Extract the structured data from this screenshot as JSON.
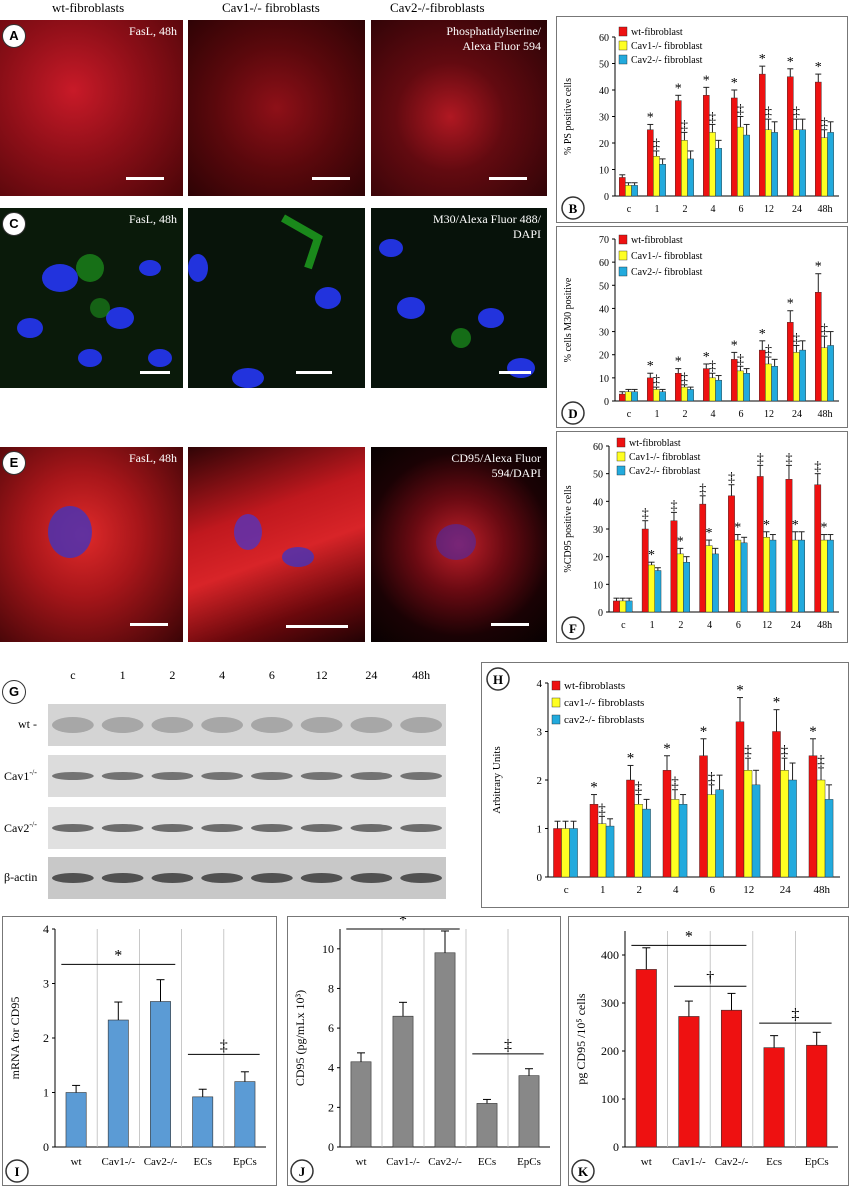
{
  "column_titles": [
    "wt-fibroblasts",
    "Cav1-/- fibroblasts",
    "Cav2-/-fibroblasts"
  ],
  "micro_panels": {
    "A": {
      "badge": "A",
      "left_label": "FasL, 48h",
      "right_label": "Phosphatidylserine/\nAlexa Fluor 594"
    },
    "C": {
      "badge": "C",
      "left_label": "FasL, 48h",
      "right_label": "M30/Alexa Fluor 488/\nDAPI"
    },
    "E": {
      "badge": "E",
      "left_label": "FasL, 48h",
      "right_label": "CD95/Alexa Fluor\n594/DAPI"
    }
  },
  "colors": {
    "red": "#ee1111",
    "yellow": "#ffff22",
    "blue": "#22aadd",
    "gray": "#888888",
    "lightblue": "#5b9bd5"
  },
  "time_categories": [
    "c",
    "1",
    "2",
    "4",
    "6",
    "12",
    "24",
    "48h"
  ],
  "chart_data": [
    {
      "panel": "B",
      "type": "bar",
      "ylabel": "% PS positive cells",
      "ylim": [
        0,
        60
      ],
      "yticks": [
        0,
        10,
        20,
        30,
        40,
        50,
        60
      ],
      "categories": [
        "c",
        "1",
        "2",
        "4",
        "6",
        "12",
        "24",
        "48h"
      ],
      "legend": "top-left",
      "series": [
        {
          "name": "wt-fibroblast",
          "color": "#ee1111",
          "values": [
            7,
            25,
            36,
            38,
            37,
            46,
            45,
            43
          ],
          "err": [
            1,
            2,
            2,
            3,
            3,
            3,
            3,
            3
          ],
          "marks": [
            "",
            "*",
            "*",
            "*",
            "*",
            "*",
            "*",
            "*"
          ]
        },
        {
          "name": "Cav1-/- fibroblast",
          "color": "#ffff22",
          "values": [
            4,
            15,
            21,
            24,
            26,
            25,
            25,
            22
          ],
          "err": [
            1,
            2,
            3,
            3,
            4,
            4,
            4,
            3
          ],
          "marks": [
            "",
            "‡",
            "‡",
            "‡",
            "‡",
            "‡",
            "‡",
            "‡"
          ]
        },
        {
          "name": "Cav2-/- fibroblast",
          "color": "#22aadd",
          "values": [
            4,
            12,
            14,
            18,
            23,
            24,
            25,
            24
          ],
          "err": [
            1,
            2,
            3,
            3,
            4,
            4,
            4,
            4
          ],
          "marks": [
            "",
            "",
            "",
            "",
            "",
            "",
            "",
            ""
          ]
        }
      ]
    },
    {
      "panel": "D",
      "type": "bar",
      "ylabel": "% cells M30 positive",
      "ylim": [
        0,
        70
      ],
      "yticks": [
        0,
        10,
        20,
        30,
        40,
        50,
        60,
        70
      ],
      "categories": [
        "c",
        "1",
        "2",
        "4",
        "6",
        "12",
        "24",
        "48h"
      ],
      "legend": "top-left",
      "series": [
        {
          "name": "wt-fibroblast",
          "color": "#ee1111",
          "values": [
            3,
            10,
            12,
            14,
            18,
            22,
            34,
            47
          ],
          "err": [
            1,
            2,
            2,
            2,
            3,
            4,
            5,
            8
          ],
          "marks": [
            "",
            "*",
            "*",
            "*",
            "*",
            "*",
            "*",
            "*"
          ]
        },
        {
          "name": "Cav1-/- fibroblast",
          "color": "#ffff22",
          "values": [
            4,
            5,
            6,
            10,
            13,
            16,
            21,
            23
          ],
          "err": [
            1,
            1,
            1,
            2,
            2,
            3,
            3,
            5
          ],
          "marks": [
            "",
            "‡",
            "‡",
            "‡",
            "‡",
            "‡",
            "‡",
            "‡"
          ]
        },
        {
          "name": "Cav2-/- fibroblast",
          "color": "#22aadd",
          "values": [
            4,
            4,
            5,
            9,
            12,
            15,
            22,
            24
          ],
          "err": [
            1,
            1,
            1,
            2,
            2,
            3,
            4,
            6
          ],
          "marks": [
            "",
            "",
            "",
            "",
            "",
            "",
            "",
            ""
          ]
        }
      ]
    },
    {
      "panel": "F",
      "type": "bar",
      "ylabel": "%CD95 positive cells",
      "ylim": [
        0,
        60
      ],
      "yticks": [
        0,
        10,
        20,
        30,
        40,
        50,
        60
      ],
      "categories": [
        "c",
        "1",
        "2",
        "4",
        "6",
        "12",
        "24",
        "48h"
      ],
      "legend": "top-left",
      "series": [
        {
          "name": "wt-fibroblast",
          "color": "#ee1111",
          "values": [
            4,
            30,
            33,
            39,
            42,
            49,
            48,
            46
          ],
          "err": [
            1,
            3,
            3,
            3,
            4,
            4,
            5,
            4
          ],
          "marks": [
            "",
            "‡",
            "‡",
            "‡",
            "‡",
            "‡",
            "‡",
            "‡"
          ]
        },
        {
          "name": "Cav1-/- fibroblast",
          "color": "#ffff22",
          "values": [
            4,
            17,
            21,
            24,
            26,
            27,
            26,
            26
          ],
          "err": [
            1,
            1,
            2,
            2,
            2,
            2,
            3,
            2
          ],
          "marks": [
            "",
            "*",
            "*",
            "*",
            "*",
            "*",
            "*",
            "*"
          ]
        },
        {
          "name": "Cav2-/- fibroblast",
          "color": "#22aadd",
          "values": [
            4,
            15,
            18,
            21,
            25,
            26,
            26,
            26
          ],
          "err": [
            1,
            1,
            2,
            2,
            2,
            2,
            3,
            2
          ],
          "marks": [
            "",
            "",
            "",
            "",
            "",
            "",
            "",
            ""
          ]
        }
      ]
    },
    {
      "panel": "H",
      "type": "bar",
      "ylabel": "Arbitrary Units",
      "ylim": [
        0,
        4
      ],
      "yticks": [
        0,
        1,
        2,
        3,
        4
      ],
      "categories": [
        "c",
        "1",
        "2",
        "4",
        "6",
        "12",
        "24",
        "48h"
      ],
      "legend": "top-left",
      "series": [
        {
          "name": "wt-fibroblasts",
          "color": "#ee1111",
          "values": [
            1.0,
            1.5,
            2.0,
            2.2,
            2.5,
            3.2,
            3.0,
            2.5
          ],
          "err": [
            0.15,
            0.2,
            0.3,
            0.3,
            0.35,
            0.5,
            0.45,
            0.35
          ],
          "marks": [
            "",
            "*",
            "*",
            "*",
            "*",
            "*",
            "*",
            "*"
          ]
        },
        {
          "name": "cav1-/- fibroblasts",
          "color": "#ffff22",
          "values": [
            1.0,
            1.1,
            1.5,
            1.6,
            1.7,
            2.2,
            2.2,
            2.0
          ],
          "err": [
            0.15,
            0.15,
            0.2,
            0.2,
            0.2,
            0.25,
            0.25,
            0.25
          ],
          "marks": [
            "",
            "‡",
            "‡",
            "‡",
            "‡",
            "‡",
            "‡",
            "‡"
          ]
        },
        {
          "name": "cav2-/- fibroblasts",
          "color": "#22aadd",
          "values": [
            1.0,
            1.05,
            1.4,
            1.5,
            1.8,
            1.9,
            2.0,
            1.6
          ],
          "err": [
            0.15,
            0.15,
            0.2,
            0.2,
            0.3,
            0.3,
            0.35,
            0.3
          ],
          "marks": [
            "",
            "",
            "",
            "",
            "",
            "",
            "",
            ""
          ]
        }
      ]
    },
    {
      "panel": "I",
      "type": "bar",
      "ylabel": "mRNA for CD95",
      "ylim": [
        0,
        4
      ],
      "yticks": [
        0,
        1,
        2,
        3,
        4
      ],
      "categories": [
        "wt",
        "Cav1-/-",
        "Cav2-/-",
        "ECs",
        "EpCs"
      ],
      "color": "#5b9bd5",
      "values": [
        1.0,
        2.33,
        2.67,
        0.92,
        1.2
      ],
      "err": [
        0.13,
        0.33,
        0.4,
        0.14,
        0.18
      ],
      "sig": [
        {
          "label": "*",
          "from": 0,
          "to": 2,
          "at": 3.35
        },
        {
          "label": "‡",
          "from": 3,
          "to": 4,
          "at": 1.7
        }
      ]
    },
    {
      "panel": "J",
      "type": "bar",
      "ylabel": "CD95 (pg/mLx 10³)",
      "ylim": [
        0,
        11
      ],
      "yticks": [
        0,
        2,
        4,
        6,
        8,
        10
      ],
      "categories": [
        "wt",
        "Cav1-/-",
        "Cav2-/-",
        "ECs",
        "EpCs"
      ],
      "color": "#888888",
      "values": [
        4.3,
        6.6,
        9.8,
        2.2,
        3.6
      ],
      "err": [
        0.45,
        0.7,
        1.1,
        0.2,
        0.35
      ],
      "sig": [
        {
          "label": "*",
          "from": 0,
          "to": 2,
          "at": 11.0
        },
        {
          "label": "‡",
          "from": 3,
          "to": 4,
          "at": 4.7
        }
      ]
    },
    {
      "panel": "K",
      "type": "bar",
      "ylabel": "pg CD95 /10⁵ cells",
      "ylim": [
        0,
        450
      ],
      "yticks": [
        0,
        100,
        200,
        300,
        400
      ],
      "categories": [
        "wt",
        "Cav1-/-",
        "Cav2-/-",
        "Ecs",
        "EpCs"
      ],
      "color": "#ee1111",
      "values": [
        370,
        272,
        285,
        207,
        212
      ],
      "err": [
        45,
        32,
        35,
        25,
        27
      ],
      "sig": [
        {
          "label": "*",
          "from": 0,
          "to": 2,
          "at": 420
        },
        {
          "label": "†",
          "from": 1,
          "to": 2,
          "at": 335
        },
        {
          "label": "‡",
          "from": 3,
          "to": 4,
          "at": 258
        }
      ]
    }
  ],
  "blot": {
    "badge": "G",
    "lanes": [
      "c",
      "1",
      "2",
      "4",
      "6",
      "12",
      "24",
      "48h"
    ],
    "rows": [
      "wt -",
      "Cav1",
      "Cav2",
      "β-actin"
    ],
    "row_superscript": "-/-"
  }
}
